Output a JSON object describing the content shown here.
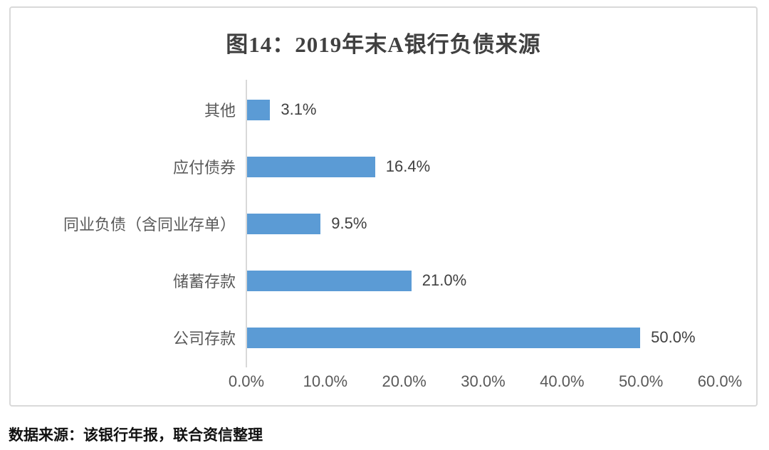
{
  "chart_data": {
    "type": "bar",
    "orientation": "horizontal",
    "title": "图14：2019年末A银行负债来源",
    "categories": [
      "其他",
      "应付债券",
      "同业负债（含同业存单）",
      "储蓄存款",
      "公司存款"
    ],
    "values": [
      3.1,
      16.4,
      9.5,
      21.0,
      50.0
    ],
    "value_labels": [
      "3.1%",
      "16.4%",
      "9.5%",
      "21.0%",
      "50.0%"
    ],
    "x_ticks": [
      "0.0%",
      "10.0%",
      "20.0%",
      "30.0%",
      "40.0%",
      "50.0%",
      "60.0%"
    ],
    "xlim": [
      0,
      60
    ],
    "bar_color": "#5b9bd5",
    "axis_line_color": "#d9d9d9",
    "grid": false,
    "legend": "none"
  },
  "footer": {
    "source_note": "数据来源：该银行年报，联合资信整理"
  }
}
